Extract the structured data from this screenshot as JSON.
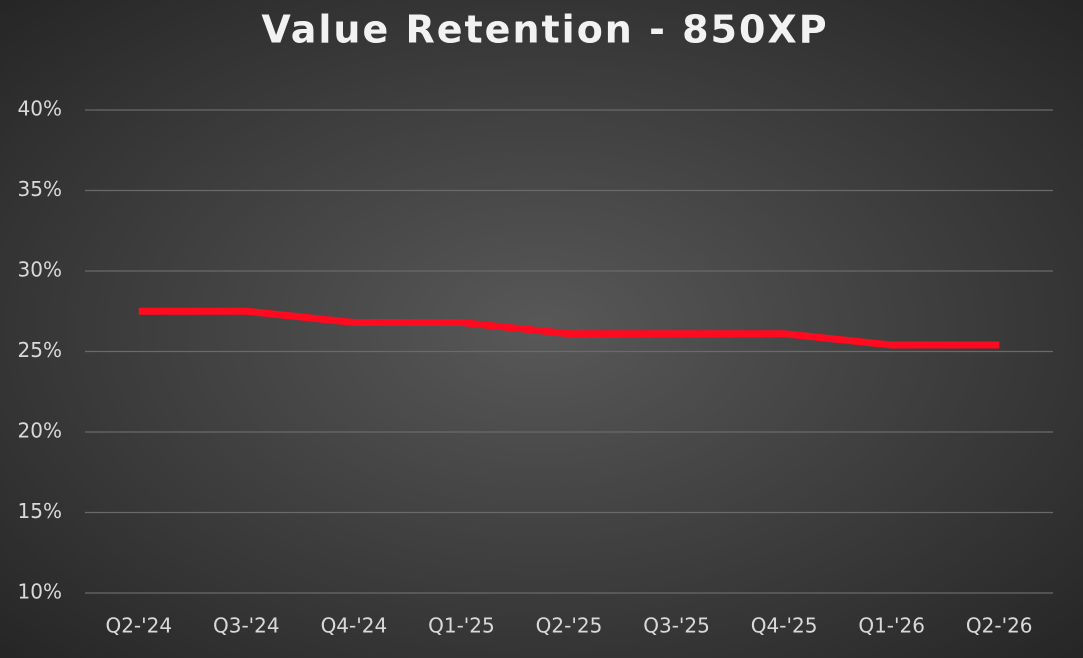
{
  "chart_data": {
    "type": "line",
    "title": "Value Retention - 850XP",
    "categories": [
      "Q2-'24",
      "Q3-'24",
      "Q4-'24",
      "Q1-'25",
      "Q2-'25",
      "Q3-'25",
      "Q4-'25",
      "Q1-'26",
      "Q2-'26"
    ],
    "values": [
      27.5,
      27.5,
      26.8,
      26.8,
      26.1,
      26.1,
      26.1,
      25.4,
      25.4
    ],
    "color": "#ff0a1e",
    "ylim": [
      10,
      40
    ],
    "yticks": [
      {
        "value": 10,
        "label": "10%"
      },
      {
        "value": 15,
        "label": "15%"
      },
      {
        "value": 20,
        "label": "20%"
      },
      {
        "value": 25,
        "label": "25%"
      },
      {
        "value": 30,
        "label": "30%"
      },
      {
        "value": 35,
        "label": "35%"
      },
      {
        "value": 40,
        "label": "40%"
      }
    ],
    "grid": true
  }
}
